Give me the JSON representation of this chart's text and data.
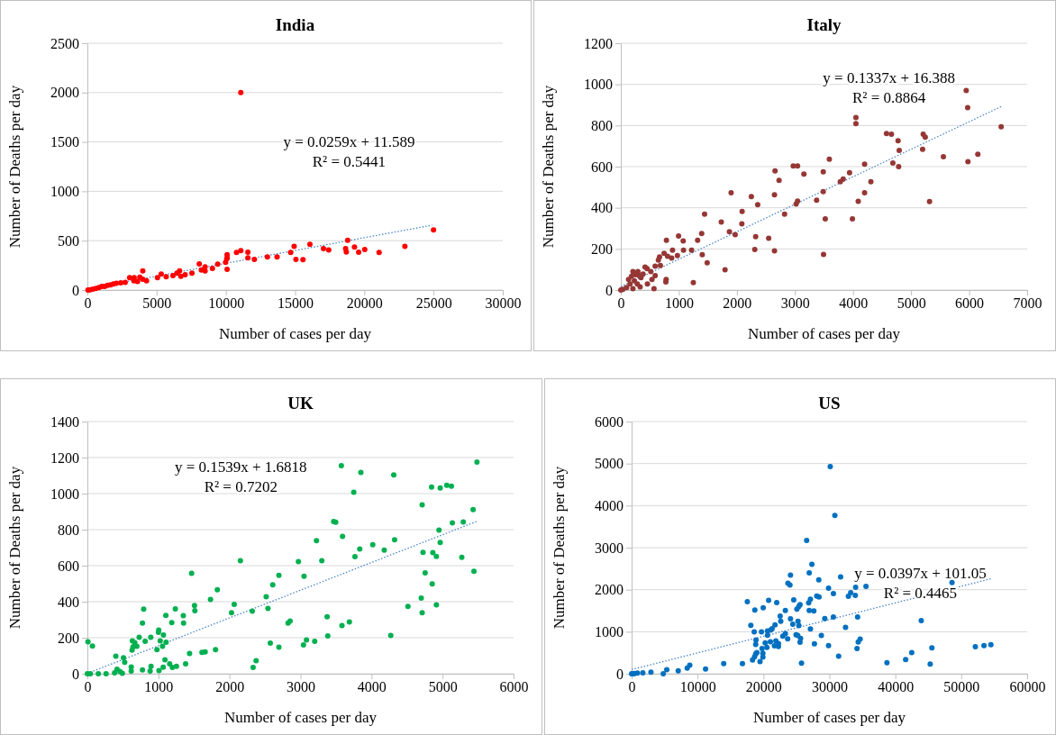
{
  "chart_data": [
    {
      "type": "scatter",
      "title": "India",
      "xlabel": "Number of cases per day",
      "ylabel": "Number of Deaths per day",
      "xlim": [
        0,
        30000
      ],
      "xticks": [
        0,
        5000,
        10000,
        15000,
        20000,
        25000,
        30000
      ],
      "ylim": [
        0,
        2500
      ],
      "yticks": [
        0,
        500,
        1000,
        1500,
        2000,
        2500
      ],
      "grid": "y",
      "annotations": [
        "y = 0.0259x + 11.589",
        "R² = 0.5441"
      ],
      "series": [
        {
          "marker": "circle",
          "color": "#ff0000",
          "x": [
            11080,
            25000,
            22930,
            21070,
            20030,
            19590,
            19290,
            18800,
            18700,
            18650,
            17430,
            17050,
            16070,
            15570,
            15060,
            14930,
            14680,
            13700,
            13000,
            12060,
            11590,
            11590,
            11080,
            10770,
            10090,
            10090,
            10090,
            9980,
            10070,
            9410,
            9030,
            8500,
            8500,
            8230,
            8080,
            7550,
            7060,
            6660,
            6750,
            6470,
            6180,
            5690,
            5330,
            5060,
            4270,
            4000,
            4000,
            3790,
            3620,
            3380,
            3360,
            3050,
            2730,
            2410,
            2090,
            1880,
            1670,
            1460,
            1250,
            1040,
            830,
            610,
            400,
            190,
            40
          ],
          "values": [
            2000,
            610,
            442,
            380,
            411,
            383,
            436,
            505,
            386,
            420,
            405,
            420,
            464,
            308,
            311,
            442,
            380,
            336,
            336,
            311,
            327,
            383,
            399,
            380,
            358,
            327,
            209,
            280,
            318,
            262,
            218,
            234,
            193,
            202,
            265,
            171,
            156,
            193,
            140,
            171,
            146,
            134,
            162,
            125,
            93,
            193,
            109,
            131,
            87,
            125,
            93,
            125,
            78,
            72,
            69,
            62,
            53,
            47,
            37,
            37,
            25,
            16,
            9,
            3,
            0
          ]
        },
        {
          "type": "line",
          "marker": "none",
          "line_style": "dotted",
          "color": "#4a86c8",
          "x": [
            0,
            24900
          ],
          "values": [
            12,
            657
          ]
        }
      ]
    },
    {
      "type": "scatter",
      "title": "Italy",
      "xlabel": "Number of cases per day",
      "ylabel": "Number of Deaths per day",
      "xlim": [
        0,
        7000
      ],
      "xticks": [
        0,
        1000,
        2000,
        3000,
        4000,
        5000,
        6000,
        7000
      ],
      "ylim": [
        0,
        1200
      ],
      "yticks": [
        0,
        200,
        400,
        600,
        800,
        1000,
        1200
      ],
      "grid": "y",
      "annotations": [
        "y = 0.1337x + 16.388",
        "R² = 0.8864"
      ],
      "series": [
        {
          "marker": "circle",
          "color": "#953735",
          "x": [
            5950,
            5975,
            6552,
            6150,
            5980,
            5557,
            5318,
            5209,
            5244,
            5199,
            4577,
            4662,
            4776,
            4796,
            4686,
            4786,
            4050,
            4050,
            4199,
            4308,
            4199,
            4090,
            3990,
            3940,
            3831,
            3781,
            3592,
            3487,
            3487,
            3522,
            3492,
            3373,
            3154,
            3045,
            2970,
            3045,
            3020,
            2726,
            2657,
            2647,
            2821,
            2547,
            2647,
            2358,
            2249,
            2323,
            2308,
            2090,
            2085,
            1900,
            1970,
            1871,
            1731,
            1796,
            1443,
            1393,
            1323,
            1403,
            1488,
            1249,
            1219,
            1075,
            1080,
            995,
            975,
            891,
            876,
            786,
            746,
            806,
            667,
            647,
            682,
            592,
            592,
            517,
            453,
            418,
            458,
            572,
            781,
            776,
            537,
            383,
            348,
            318,
            294,
            259,
            209,
            184,
            134,
            234,
            284,
            159,
            333,
            100,
            35,
            0,
            209
          ],
          "values": [
            970,
            887,
            794,
            660,
            624,
            648,
            430,
            758,
            743,
            684,
            761,
            758,
            726,
            679,
            618,
            600,
            839,
            809,
            612,
            527,
            473,
            431,
            346,
            570,
            540,
            527,
            636,
            575,
            479,
            346,
            173,
            437,
            564,
            603,
            603,
            433,
            418,
            533,
            579,
            463,
            369,
            252,
            190,
            415,
            454,
            260,
            197,
            382,
            322,
            473,
            269,
            284,
            331,
            99,
            369,
            275,
            242,
            172,
            133,
            36,
            194,
            239,
            194,
            263,
            167,
            194,
            155,
            242,
            179,
            164,
            161,
            146,
            119,
            116,
            70,
            90,
            104,
            112,
            30,
            7,
            51,
            39,
            51,
            78,
            60,
            70,
            90,
            75,
            90,
            67,
            52,
            45,
            30,
            30,
            15,
            12,
            3,
            0,
            7
          ]
        },
        {
          "type": "line",
          "marker": "none",
          "line_style": "dotted",
          "color": "#4a86c8",
          "x": [
            0,
            6560
          ],
          "values": [
            16,
            893
          ]
        }
      ]
    },
    {
      "type": "scatter",
      "title": "UK",
      "xlabel": "Number of cases per day",
      "ylabel": "Number of Deaths per day",
      "xlim": [
        0,
        6000
      ],
      "xticks": [
        0,
        1000,
        2000,
        3000,
        4000,
        5000,
        6000
      ],
      "ylim": [
        0,
        1400
      ],
      "yticks": [
        0,
        200,
        400,
        600,
        800,
        1000,
        1200,
        1400
      ],
      "grid": "y",
      "annotations": [
        "y = 0.1539x + 1.6818",
        "R² = 0.7202"
      ],
      "series": [
        {
          "marker": "circle",
          "color": "#00b050",
          "x": [
            5484,
            3575,
            3850,
            4313,
            3750,
            4846,
            4967,
            5059,
            5125,
            4713,
            5430,
            3467,
            3496,
            5138,
            5292,
            4950,
            4967,
            3592,
            4325,
            3225,
            4017,
            3834,
            4179,
            3767,
            4725,
            4863,
            4913,
            5271,
            5442,
            4755,
            4854,
            4700,
            4913,
            4713,
            4513,
            4271,
            3300,
            2971,
            3050,
            2696,
            2609,
            2517,
            2542,
            2321,
            2154,
            2067,
            2029,
            1829,
            1733,
            1467,
            1508,
            1513,
            3375,
            3688,
            3584,
            2825,
            2854,
            3384,
            3200,
            3084,
            3042,
            2696,
            2575,
            2375,
            2333,
            1804,
            1658,
            1613,
            1438,
            1383,
            1254,
            1196,
            1350,
            1354,
            1238,
            1188,
            1104,
            1108,
            1058,
            1025,
            1071,
            1004,
            1000,
            979,
            1092,
            1158,
            1067,
            1008,
            896,
            883,
            892,
            813,
            792,
            775,
            729,
            696,
            667,
            633,
            629,
            642,
            775,
            617,
            617,
            525,
            508,
            400,
            458,
            417,
            383,
            492,
            263,
            154,
            8,
            71,
            0,
            42
          ],
          "values": [
            1175,
            1155,
            1117,
            1104,
            1008,
            1036,
            1031,
            1046,
            1041,
            937,
            911,
            845,
            841,
            838,
            843,
            797,
            729,
            762,
            744,
            739,
            716,
            693,
            686,
            650,
            674,
            673,
            651,
            646,
            569,
            560,
            499,
            420,
            382,
            339,
            374,
            213,
            628,
            622,
            541,
            546,
            494,
            428,
            362,
            347,
            628,
            385,
            339,
            466,
            413,
            557,
            379,
            350,
            316,
            288,
            268,
            281,
            293,
            210,
            180,
            187,
            160,
            147,
            170,
            73,
            35,
            134,
            121,
            119,
            112,
            55,
            41,
            35,
            322,
            281,
            360,
            284,
            324,
            175,
            152,
            183,
            215,
            243,
            230,
            134,
            78,
            55,
            36,
            17,
            41,
            15,
            203,
            180,
            359,
            281,
            203,
            152,
            172,
            182,
            131,
            149,
            21,
            38,
            15,
            64,
            89,
            98,
            12,
            25,
            5,
            2,
            0,
            0,
            177,
            154,
            0,
            0
          ]
        },
        {
          "type": "line",
          "marker": "none",
          "line_style": "dotted",
          "color": "#4a86c8",
          "x": [
            0,
            5490
          ],
          "values": [
            2,
            847
          ]
        }
      ]
    },
    {
      "type": "scatter",
      "title": "US",
      "xlabel": "Number of cases per day",
      "ylabel": "Number of Deaths per day",
      "xlim": [
        0,
        60000
      ],
      "xticks": [
        0,
        10000,
        20000,
        30000,
        40000,
        50000,
        60000
      ],
      "ylim": [
        0,
        6000
      ],
      "yticks": [
        0,
        1000,
        2000,
        3000,
        4000,
        5000,
        6000
      ],
      "grid": "y",
      "annotations": [
        "y = 0.0397x + 101.05",
        "R² = 0.4465"
      ],
      "series": [
        {
          "marker": "circle",
          "color": "#0070c0",
          "x": [
            30130,
            30830,
            26550,
            27340,
            26940,
            24100,
            23710,
            24020,
            28390,
            31700,
            29870,
            30610,
            33980,
            35550,
            48600,
            43930,
            33230,
            32880,
            33930,
            28080,
            28430,
            27120,
            26860,
            24590,
            25550,
            25370,
            25070,
            22010,
            20780,
            17550,
            18690,
            19960,
            23320,
            26940,
            27640,
            22530,
            22620,
            21750,
            21310,
            21090,
            20610,
            20610,
            19700,
            18600,
            18080,
            24100,
            24450,
            25240,
            25370,
            29300,
            30610,
            34280,
            27120,
            28780,
            32450,
            23320,
            22930,
            23670,
            24940,
            25200,
            25630,
            25550,
            27730,
            29870,
            31400,
            25770,
            34670,
            34370,
            34190,
            20260,
            21050,
            21880,
            22270,
            21660,
            22270,
            20520,
            19780,
            18870,
            18820,
            19000,
            18820,
            19910,
            19910,
            18650,
            18340,
            19480,
            16810,
            13970,
            11220,
            8820,
            8430,
            7070,
            5330,
            4800,
            2930,
            1700,
            870,
            440,
            0,
            220,
            38730,
            41570,
            42490,
            45290,
            45550,
            52140,
            53450,
            54500
          ],
          "values": [
            4929,
            3764,
            3171,
            2606,
            2401,
            2345,
            2154,
            2112,
            2232,
            2302,
            2034,
            1907,
            2055,
            2076,
            2168,
            1264,
            1928,
            1843,
            1864,
            1850,
            1829,
            1773,
            1688,
            1758,
            1645,
            1603,
            1540,
            1695,
            1744,
            1716,
            1518,
            1568,
            1504,
            1504,
            1497,
            1370,
            1250,
            1165,
            1073,
            1038,
            1017,
            918,
            996,
            996,
            1151,
            1306,
            1179,
            1250,
            1144,
            1313,
            1349,
            1349,
            1066,
            911,
            1102,
            953,
            897,
            833,
            925,
            911,
            840,
            749,
            713,
            671,
            417,
            254,
            826,
            756,
            600,
            734,
            763,
            784,
            720,
            664,
            650,
            629,
            600,
            805,
            699,
            501,
            473,
            487,
            395,
            403,
            325,
            290,
            240,
            240,
            113,
            205,
            134,
            71,
            99,
            0,
            35,
            21,
            14,
            7,
            0,
            0,
            261,
            339,
            501,
            233,
            614,
            643,
            671,
            692
          ]
        },
        {
          "type": "line",
          "marker": "none",
          "line_style": "dotted",
          "color": "#4a86c8",
          "x": [
            0,
            54500
          ],
          "values": [
            100,
            2260
          ]
        }
      ]
    }
  ]
}
